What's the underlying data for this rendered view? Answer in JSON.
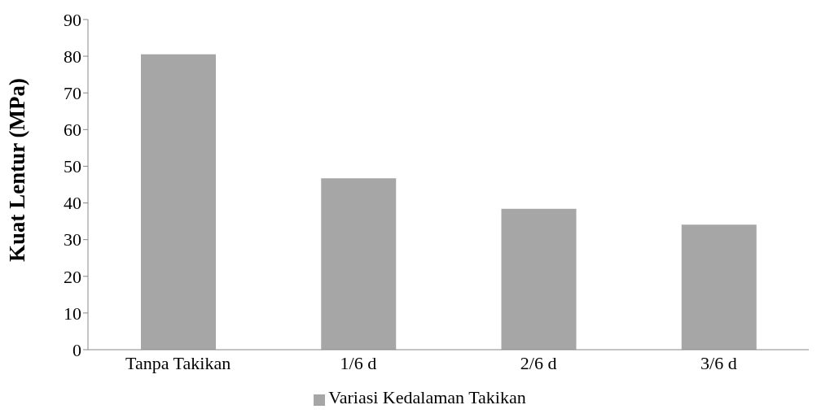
{
  "chart_data": {
    "type": "bar",
    "ylabel": "Kuat Lentur (MPa)",
    "categories": [
      "Tanpa Takikan",
      "1/6 d",
      "2/6 d",
      "3/6 d"
    ],
    "series": [
      {
        "name": "Variasi Kedalaman Takikan",
        "color": "#a6a6a6",
        "values": [
          80.5,
          46.7,
          38.4,
          34.1
        ]
      }
    ],
    "ylim": [
      0,
      90
    ],
    "yticks": [
      0,
      10,
      20,
      30,
      40,
      50,
      60,
      70,
      80,
      90
    ],
    "grid": false,
    "legend": "bottom"
  }
}
